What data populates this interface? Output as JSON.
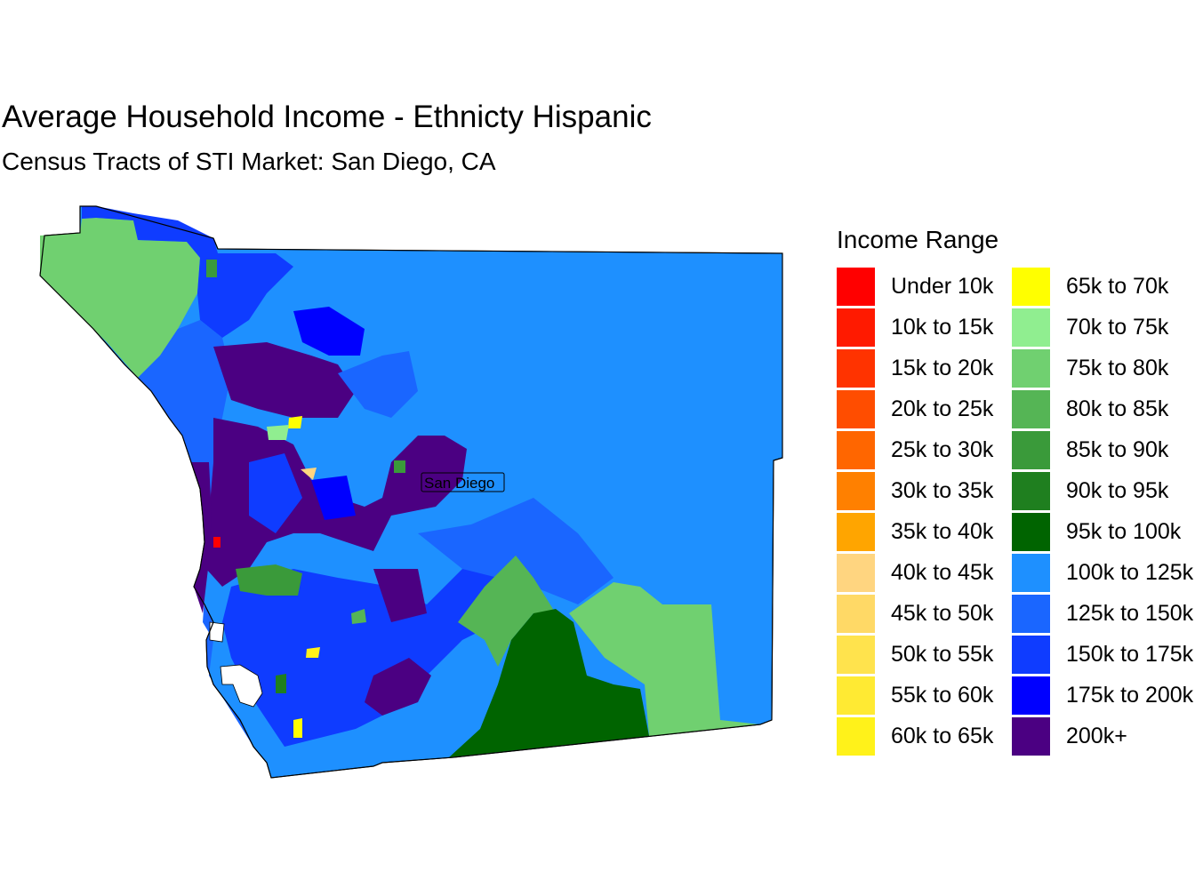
{
  "title": "Average Household Income - Ethnicty Hispanic",
  "subtitle": "Census Tracts of STI Market: San Diego, CA",
  "city_label": "San Diego",
  "legend": {
    "title": "Income Range",
    "items": [
      {
        "label": "Under 10k",
        "color": "#ff0000"
      },
      {
        "label": "10k to 15k",
        "color": "#ff1a00"
      },
      {
        "label": "15k to 20k",
        "color": "#ff3300"
      },
      {
        "label": "20k to 25k",
        "color": "#ff4d00"
      },
      {
        "label": "25k to 30k",
        "color": "#ff6600"
      },
      {
        "label": "30k to 35k",
        "color": "#ff8000"
      },
      {
        "label": "35k to 40k",
        "color": "#ffa500"
      },
      {
        "label": "40k to 45k",
        "color": "#ffd580"
      },
      {
        "label": "45k to 50k",
        "color": "#ffd966"
      },
      {
        "label": "50k to 55k",
        "color": "#ffe34d"
      },
      {
        "label": "55k to 60k",
        "color": "#ffea33"
      },
      {
        "label": "60k to 65k",
        "color": "#fff21a"
      },
      {
        "label": "65k to 70k",
        "color": "#ffff00"
      },
      {
        "label": "70k to 75k",
        "color": "#90ee90"
      },
      {
        "label": "75k to 80k",
        "color": "#70d070"
      },
      {
        "label": "80k to 85k",
        "color": "#55b555"
      },
      {
        "label": "85k to 90k",
        "color": "#3a9a3a"
      },
      {
        "label": "90k to 95k",
        "color": "#1f7f1f"
      },
      {
        "label": "95k to 100k",
        "color": "#006400"
      },
      {
        "label": "100k to 125k",
        "color": "#1e90ff"
      },
      {
        "label": "125k to 150k",
        "color": "#1a66ff"
      },
      {
        "label": "150k to 175k",
        "color": "#0f3cff"
      },
      {
        "label": "175k to 200k",
        "color": "#0000ff"
      },
      {
        "label": "200k+",
        "color": "#4b0082"
      }
    ]
  }
}
